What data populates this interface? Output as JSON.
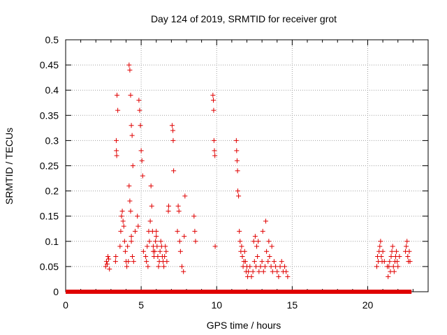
{
  "chart_data": {
    "type": "scatter",
    "title": "Day 124 of 2019, SRMTID for receiver grot",
    "xlabel": "GPS time / hours",
    "ylabel": "SRMTID / TECUs",
    "xlim": [
      0,
      24
    ],
    "ylim": [
      0,
      0.5
    ],
    "xticks": [
      0,
      5,
      10,
      15,
      20
    ],
    "xtick_labels": [
      "0",
      "5",
      "10",
      "15",
      "20"
    ],
    "yticks": [
      0,
      0.05,
      0.1,
      0.15,
      0.2,
      0.25,
      0.3,
      0.35,
      0.4,
      0.45,
      0.5
    ],
    "ytick_labels": [
      "0",
      "0.05",
      "0.1",
      "0.15",
      "0.2",
      "0.25",
      "0.3",
      "0.35",
      "0.4",
      "0.45",
      "0.5"
    ],
    "grid": true,
    "legend": "none",
    "marker": "+",
    "color": "#e00000",
    "zero_baseline": {
      "x_start": 0.0,
      "x_end": 22.9,
      "y": 0
    },
    "series": [
      {
        "x": [
          2.65,
          2.7,
          2.75,
          2.8,
          2.85,
          2.9,
          3.3,
          3.32,
          3.35,
          3.36,
          3.38,
          3.4,
          3.45,
          3.6,
          3.65,
          3.7,
          3.75,
          3.8,
          3.85,
          3.9,
          3.95,
          4.0,
          4.05,
          4.1,
          4.15,
          4.2,
          4.25,
          4.3,
          4.35,
          4.4,
          4.45,
          4.2,
          4.25,
          4.3,
          4.35,
          4.42,
          4.5,
          4.75,
          4.8,
          4.85,
          4.9,
          4.95,
          5.0,
          5.05,
          5.1,
          5.15,
          5.3,
          5.35,
          5.4,
          5.45,
          5.5,
          5.55,
          5.6,
          5.65,
          5.7,
          5.75,
          5.8,
          5.85,
          5.9,
          5.95,
          6.0,
          6.05,
          6.1,
          6.15,
          6.2,
          6.25,
          6.3,
          6.35,
          6.4,
          6.45,
          6.5,
          6.55,
          6.6,
          6.65,
          6.7,
          6.8,
          6.82,
          7.05,
          7.1,
          7.12,
          7.15,
          7.4,
          7.45,
          7.5,
          7.55,
          7.6,
          7.7,
          7.8,
          7.85,
          7.9,
          8.5,
          8.55,
          8.6,
          9.75,
          9.78,
          9.8,
          9.82,
          9.85,
          9.88,
          9.9,
          11.3,
          11.32,
          11.35,
          11.38,
          11.4,
          11.45,
          11.5,
          11.55,
          11.6,
          11.65,
          11.7,
          11.75,
          11.8,
          11.85,
          11.9,
          11.95,
          12.0,
          12.05,
          12.1,
          12.2,
          12.3,
          12.4,
          12.5,
          12.6,
          12.7,
          12.8,
          12.9,
          13.0,
          13.1,
          13.2,
          13.3,
          13.4,
          13.5,
          13.6,
          13.7,
          13.8,
          13.9,
          14.0,
          14.1,
          14.2,
          14.3,
          14.4,
          14.5,
          14.6,
          14.7,
          4.35,
          4.6,
          5.8,
          6.0,
          12.45,
          12.55,
          12.65,
          12.75,
          13.05,
          13.25,
          13.45,
          13.65,
          20.6,
          20.65,
          20.7,
          20.75,
          20.8,
          20.85,
          20.9,
          20.95,
          21.0,
          21.1,
          21.3,
          21.35,
          21.4,
          21.45,
          21.5,
          21.55,
          21.6,
          21.65,
          21.7,
          21.75,
          21.8,
          21.85,
          21.9,
          21.95,
          22.0,
          22.1,
          22.5,
          22.55,
          22.6,
          22.65,
          22.7,
          22.75,
          22.8
        ],
        "y": [
          0.05,
          0.06,
          0.055,
          0.07,
          0.065,
          0.045,
          0.06,
          0.07,
          0.3,
          0.28,
          0.27,
          0.39,
          0.36,
          0.09,
          0.12,
          0.15,
          0.16,
          0.14,
          0.13,
          0.1,
          0.08,
          0.06,
          0.05,
          0.09,
          0.06,
          0.45,
          0.44,
          0.39,
          0.33,
          0.31,
          0.25,
          0.21,
          0.18,
          0.16,
          0.11,
          0.07,
          0.06,
          0.15,
          0.13,
          0.38,
          0.36,
          0.33,
          0.28,
          0.26,
          0.23,
          0.08,
          0.07,
          0.06,
          0.09,
          0.05,
          0.12,
          0.1,
          0.14,
          0.21,
          0.17,
          0.12,
          0.09,
          0.07,
          0.08,
          0.1,
          0.12,
          0.09,
          0.07,
          0.05,
          0.06,
          0.08,
          0.1,
          0.09,
          0.07,
          0.06,
          0.05,
          0.07,
          0.09,
          0.08,
          0.06,
          0.16,
          0.17,
          0.33,
          0.32,
          0.3,
          0.24,
          0.12,
          0.17,
          0.16,
          0.1,
          0.08,
          0.05,
          0.04,
          0.11,
          0.19,
          0.15,
          0.12,
          0.1,
          0.39,
          0.38,
          0.36,
          0.3,
          0.28,
          0.27,
          0.09,
          0.3,
          0.28,
          0.26,
          0.24,
          0.2,
          0.19,
          0.12,
          0.1,
          0.08,
          0.09,
          0.07,
          0.05,
          0.06,
          0.08,
          0.06,
          0.04,
          0.05,
          0.03,
          0.04,
          0.05,
          0.03,
          0.04,
          0.06,
          0.05,
          0.07,
          0.04,
          0.05,
          0.06,
          0.04,
          0.05,
          0.08,
          0.06,
          0.07,
          0.05,
          0.04,
          0.06,
          0.05,
          0.04,
          0.03,
          0.05,
          0.06,
          0.04,
          0.05,
          0.04,
          0.03,
          0.1,
          0.12,
          0.08,
          0.11,
          0.1,
          0.11,
          0.09,
          0.1,
          0.12,
          0.14,
          0.1,
          0.09,
          0.05,
          0.07,
          0.06,
          0.08,
          0.09,
          0.1,
          0.07,
          0.06,
          0.08,
          0.06,
          0.05,
          0.03,
          0.05,
          0.06,
          0.04,
          0.07,
          0.08,
          0.09,
          0.05,
          0.04,
          0.06,
          0.07,
          0.08,
          0.06,
          0.05,
          0.07,
          0.08,
          0.09,
          0.1,
          0.07,
          0.06,
          0.08,
          0.06
        ]
      }
    ]
  }
}
